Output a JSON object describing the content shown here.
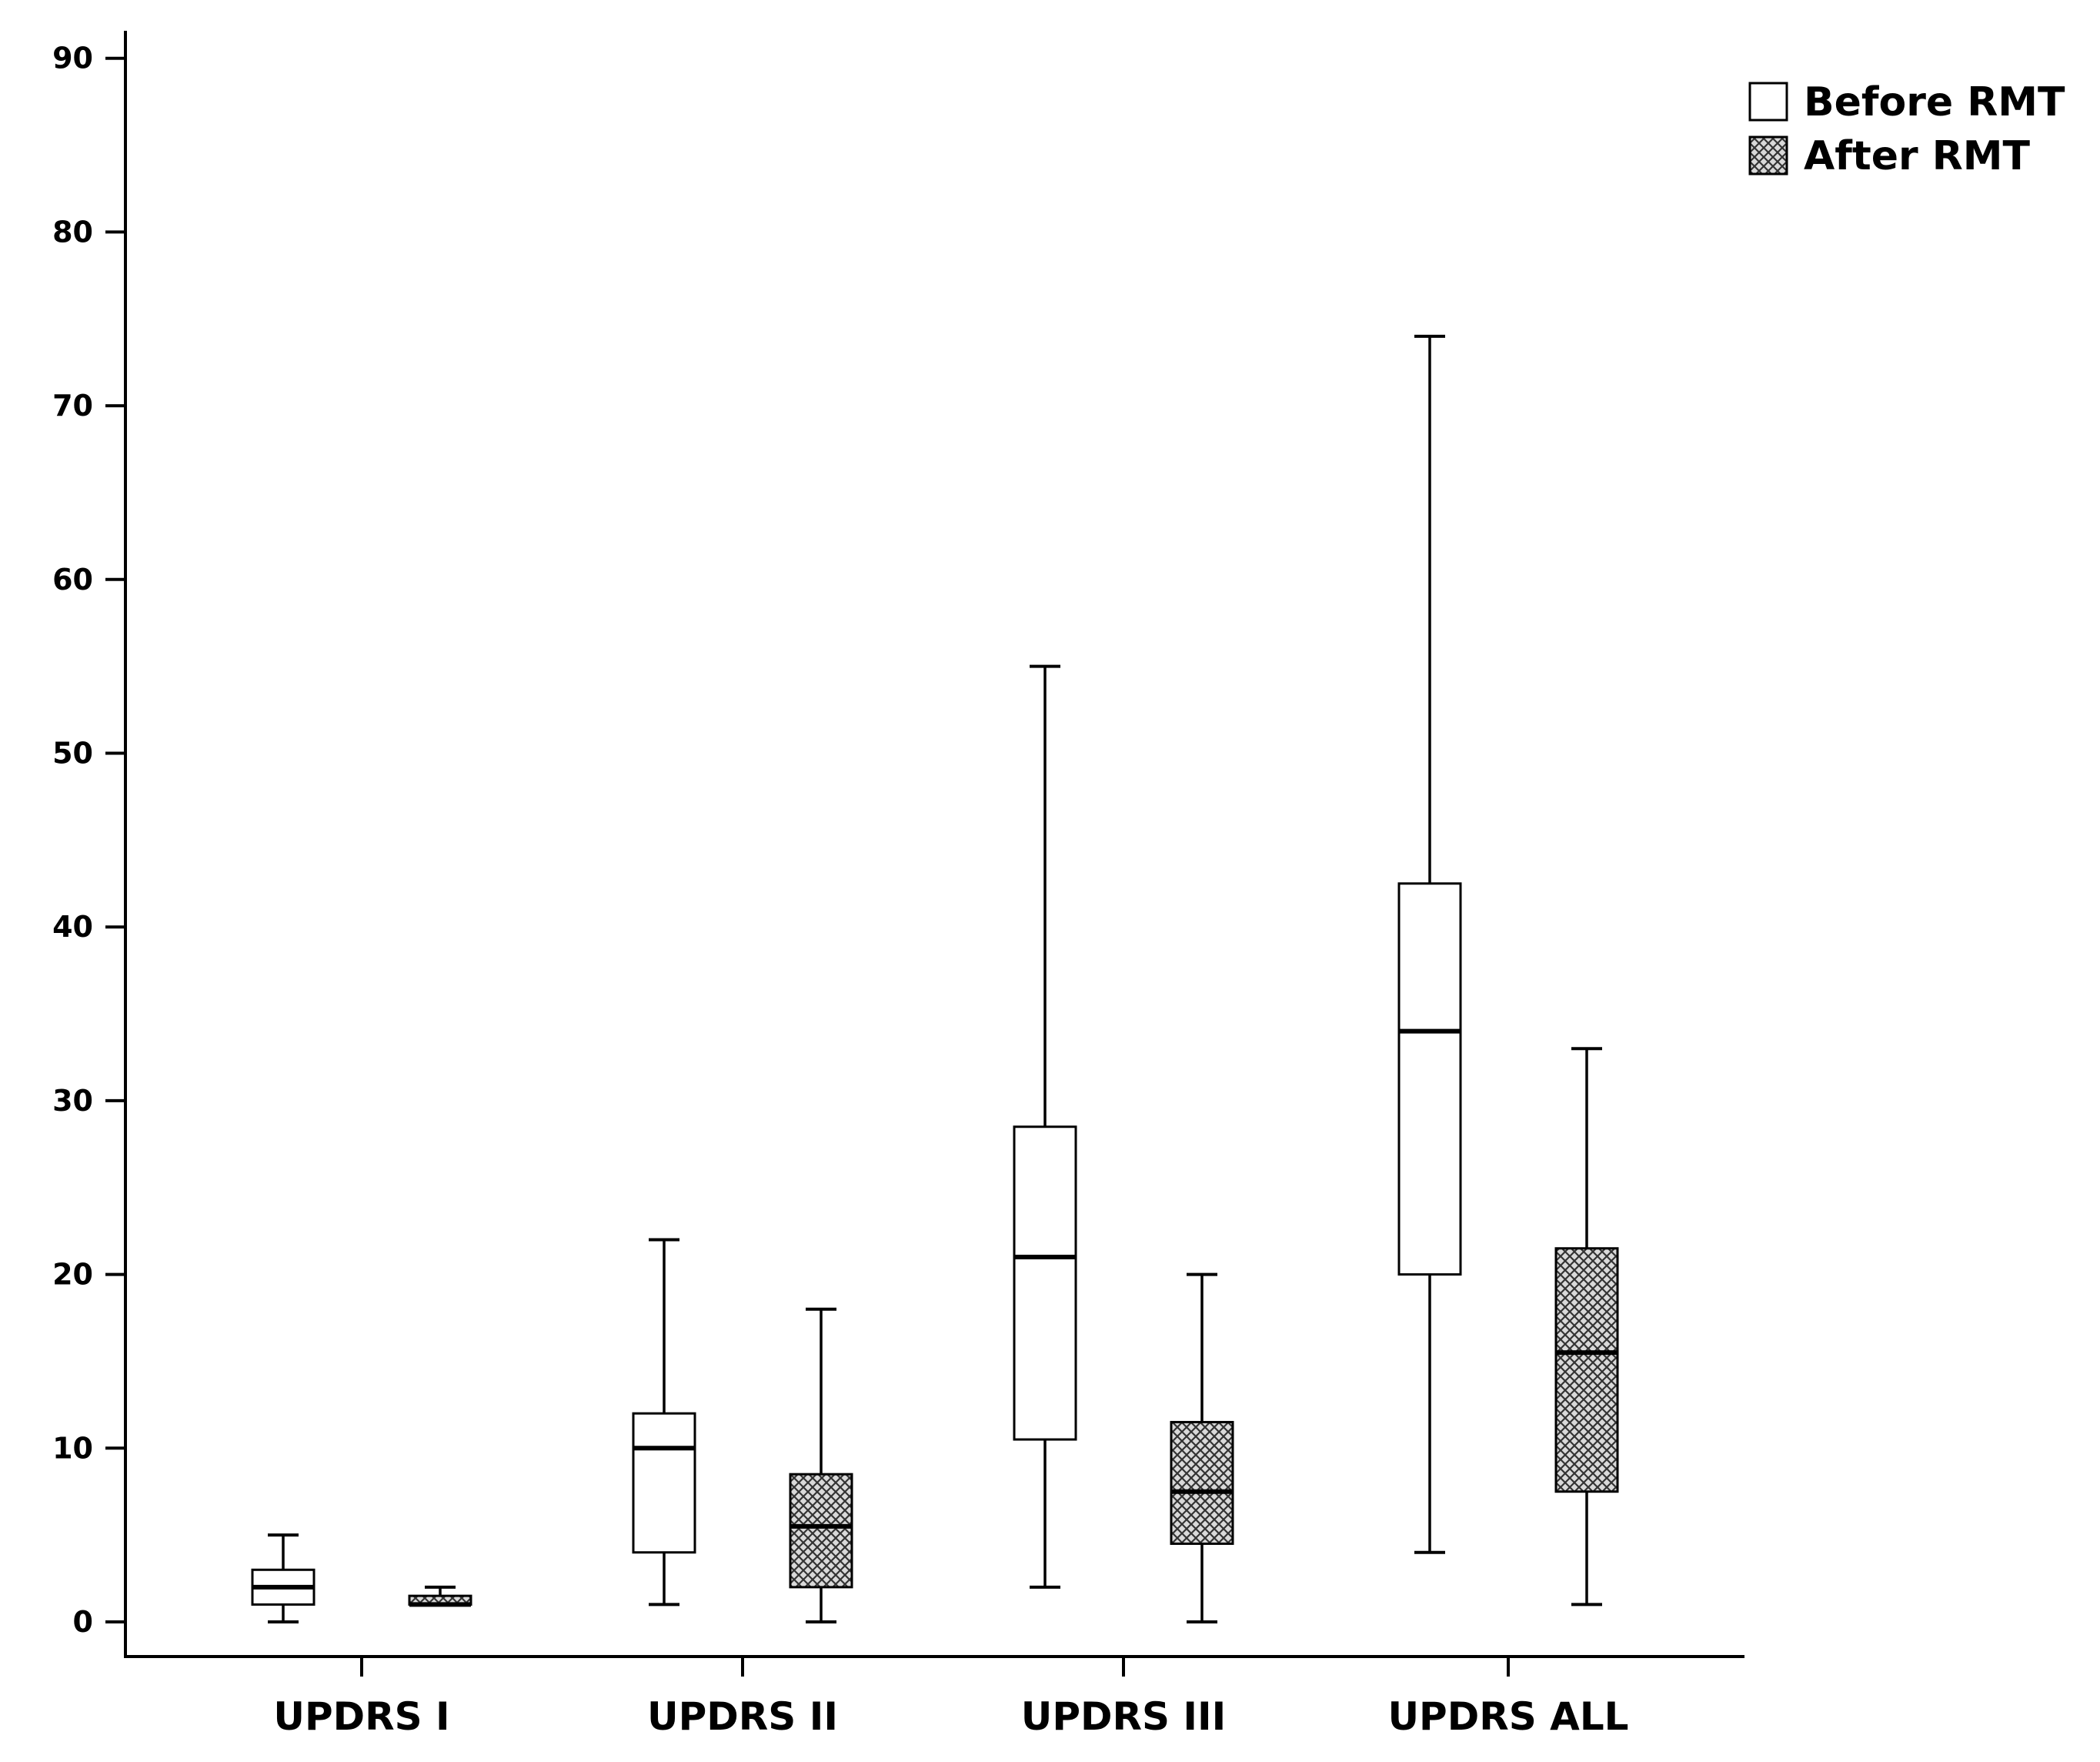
{
  "chart_data": {
    "type": "boxplot",
    "title": "",
    "xlabel": "",
    "ylabel": "",
    "ylim": [
      0,
      90
    ],
    "yticks": [
      0,
      10,
      20,
      30,
      40,
      50,
      60,
      70,
      80,
      90
    ],
    "categories": [
      "UPDRS I",
      "UPDRS II",
      "UPDRS III",
      "UPDRS ALL"
    ],
    "legend": {
      "placement": "top-right"
    },
    "series": [
      {
        "name": "Before RMT",
        "fill": "white",
        "boxes": [
          {
            "min": 0,
            "q1": 1,
            "median": 2,
            "q3": 3,
            "max": 5
          },
          {
            "min": 1,
            "q1": 4,
            "median": 10,
            "q3": 12,
            "max": 22
          },
          {
            "min": 2,
            "q1": 10.5,
            "median": 21,
            "q3": 28.5,
            "max": 55
          },
          {
            "min": 4,
            "q1": 20,
            "median": 34,
            "q3": 42.5,
            "max": 74
          }
        ]
      },
      {
        "name": "After RMT",
        "fill": "crosshatch",
        "boxes": [
          {
            "min": 1,
            "q1": 1,
            "median": 1,
            "q3": 1.5,
            "max": 2
          },
          {
            "min": 0,
            "q1": 2,
            "median": 5.5,
            "q3": 8.5,
            "max": 18
          },
          {
            "min": 0,
            "q1": 4.5,
            "median": 7.5,
            "q3": 11.5,
            "max": 20
          },
          {
            "min": 1,
            "q1": 7.5,
            "median": 15.5,
            "q3": 21.5,
            "max": 33
          }
        ]
      }
    ],
    "colors": {
      "line": "#000000",
      "hatch_bg": "#d9d9d9",
      "hatch_line": "#333333"
    }
  }
}
